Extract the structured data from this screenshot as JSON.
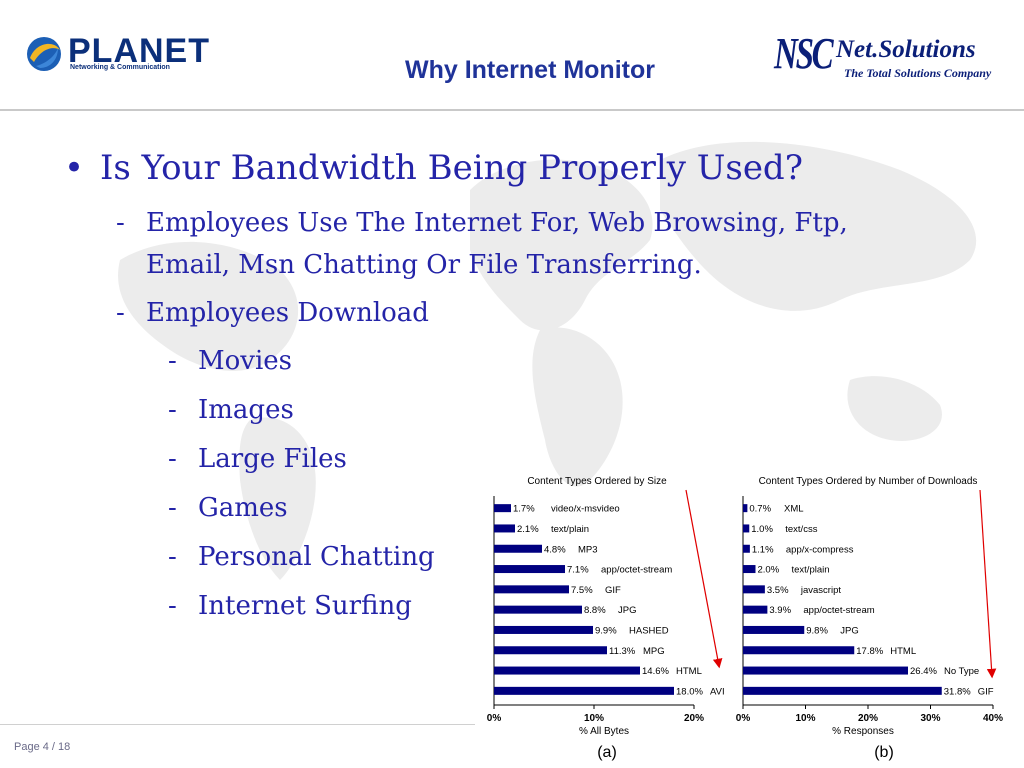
{
  "header": {
    "left_logo": {
      "name": "PLANET",
      "subtitle": "Networking & Communication"
    },
    "title": "Why Internet Monitor",
    "right_logo": {
      "mark": "NSC",
      "name": "Net.Solutions",
      "tagline": "The Total Solutions Company"
    }
  },
  "content": {
    "main_bullet": "Is Your Bandwidth Being Properly Used?",
    "sub_bullets": [
      {
        "dash": "-",
        "lines": [
          "Employees Use The Internet For, Web Browsing, Ftp,",
          "Email, Msn Chatting Or File Transferring."
        ]
      },
      {
        "dash": "-",
        "lines": [
          "Employees Download"
        ]
      }
    ],
    "download_items": [
      "Movies",
      "Images",
      "Large Files",
      "Games",
      "Personal Chatting",
      "Internet Surfing"
    ]
  },
  "footer": {
    "page": "Page 4 / 18"
  },
  "colors": {
    "bar": "#000080",
    "arrow": "#e00000",
    "text": "#2424a8"
  },
  "chart_data": [
    {
      "type": "bar",
      "orientation": "horizontal",
      "title": "Content Types Ordered by Size",
      "xlabel": "% All Bytes",
      "panel_label": "(a)",
      "xlim": [
        0,
        20
      ],
      "xticks": [
        "0%",
        "10%",
        "20%"
      ],
      "categories": [
        "video/x-msvideo",
        "text/plain",
        "MP3",
        "app/octet-stream",
        "GIF",
        "JPG",
        "HASHED",
        "MPG",
        "HTML",
        "AVI"
      ],
      "values": [
        1.7,
        2.1,
        4.8,
        7.1,
        7.5,
        8.8,
        9.9,
        11.3,
        14.6,
        18.0
      ],
      "value_labels": [
        "1.7%",
        "2.1%",
        "4.8%",
        "7.1%",
        "7.5%",
        "8.8%",
        "9.9%",
        "11.3%",
        "14.6%",
        "18.0%"
      ]
    },
    {
      "type": "bar",
      "orientation": "horizontal",
      "title": "Content Types Ordered by Number of Downloads",
      "xlabel": "% Responses",
      "panel_label": "(b)",
      "xlim": [
        0,
        40
      ],
      "xticks": [
        "0%",
        "10%",
        "20%",
        "30%",
        "40%"
      ],
      "categories": [
        "XML",
        "text/css",
        "app/x-compress",
        "text/plain",
        "javascript",
        "app/octet-stream",
        "JPG",
        "HTML",
        "No Type",
        "GIF"
      ],
      "values": [
        0.7,
        1.0,
        1.1,
        2.0,
        3.5,
        3.9,
        9.8,
        17.8,
        26.4,
        31.8
      ],
      "value_labels": [
        "0.7%",
        "1.0%",
        "1.1%",
        "2.0%",
        "3.5%",
        "3.9%",
        "9.8%",
        "17.8%",
        "26.4%",
        "31.8%"
      ]
    }
  ]
}
